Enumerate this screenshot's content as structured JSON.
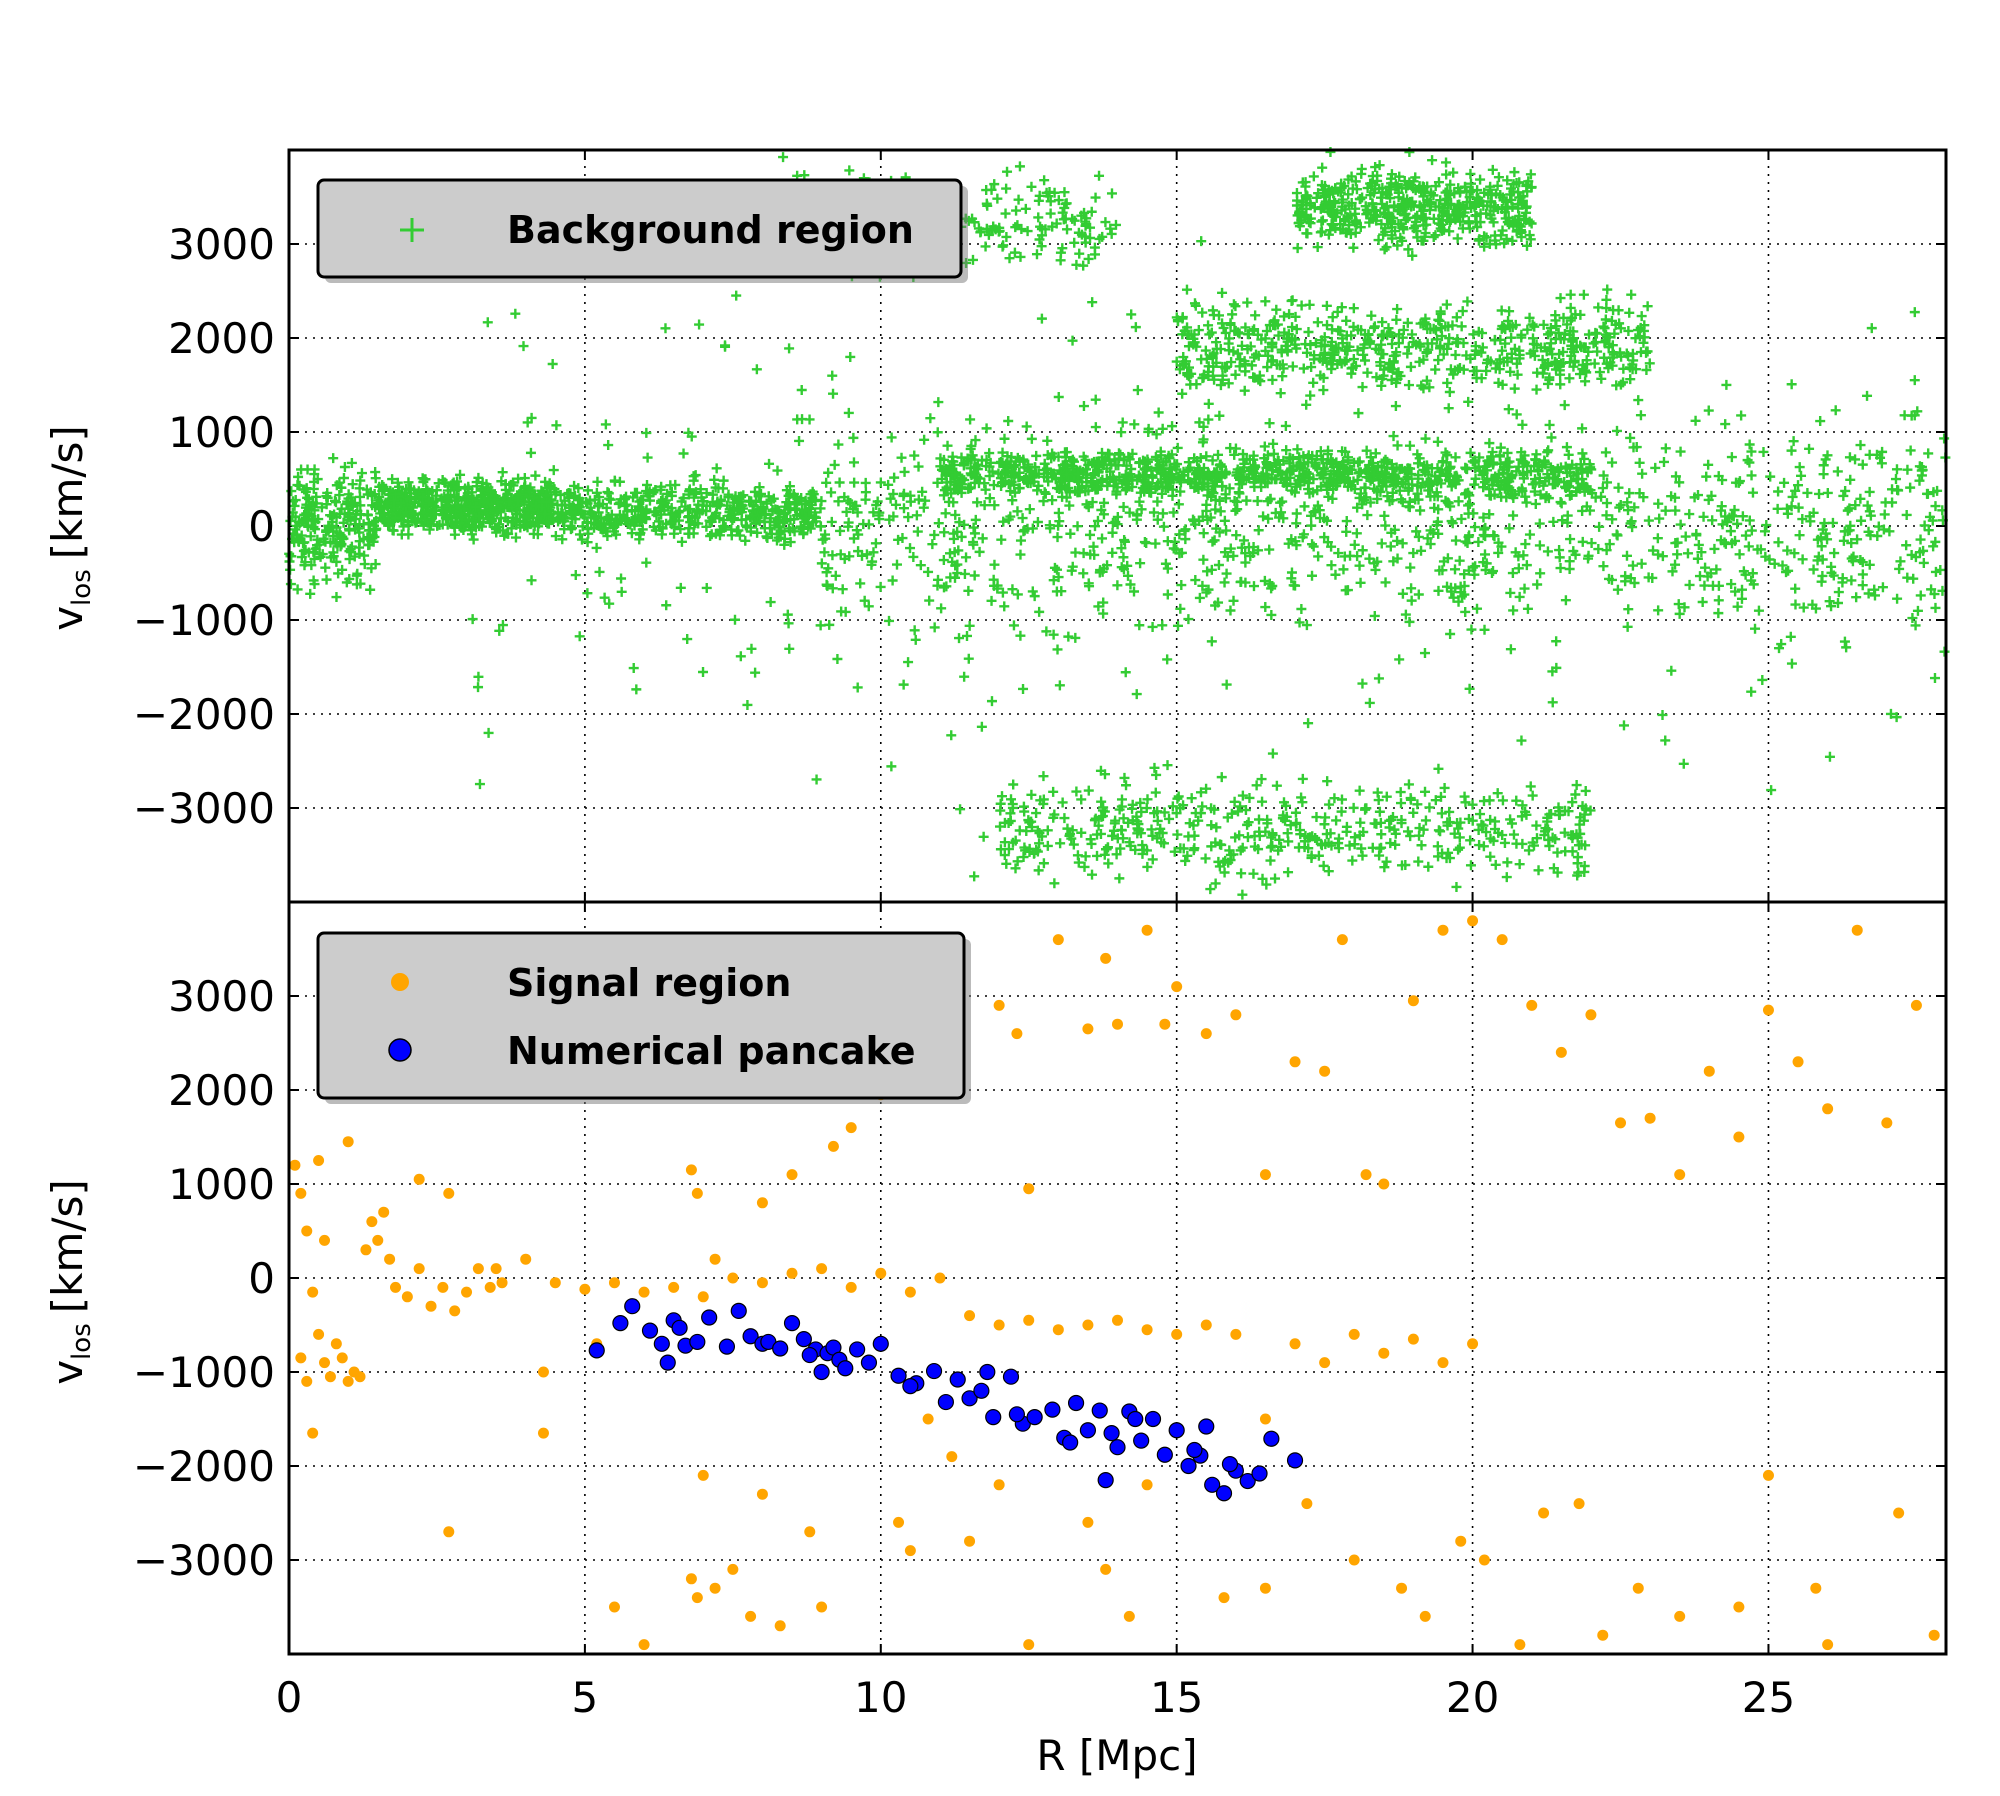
{
  "figure": {
    "xlabel": "R [Mpc]",
    "ylabel": "v",
    "ylabel_sub": "los",
    "ylabel_unit": "[km/s]"
  },
  "chart_data": [
    {
      "type": "scatter",
      "panel": "top",
      "xlim": [
        0,
        28
      ],
      "ylim": [
        -4000,
        4000
      ],
      "grid": true,
      "legend": "top-left",
      "xticks": [
        "0",
        "5",
        "10",
        "15",
        "20",
        "25"
      ],
      "yticks": [
        "3000",
        "2000",
        "1000",
        "0",
        "−1000",
        "−2000",
        "−3000"
      ],
      "xlabel": "",
      "ylabel": "v_los [km/s]",
      "colors": {
        "background": "#33cc33"
      },
      "series": [
        {
          "name": "Background region",
          "marker": "plus",
          "color": "#33cc33",
          "density_bands": [
            {
              "x": [
                0,
                1.5
              ],
              "y": [
                -900,
                900
              ],
              "weight": 0.25
            },
            {
              "x": [
                1.5,
                4.5
              ],
              "y": [
                -200,
                600
              ],
              "weight": 0.6
            },
            {
              "x": [
                4.5,
                9
              ],
              "y": [
                -300,
                600
              ],
              "weight": 0.5
            },
            {
              "x": [
                9,
                28
              ],
              "y": [
                -1500,
                1500
              ],
              "weight": 1.0
            },
            {
              "x": [
                11,
                22
              ],
              "y": [
                200,
                900
              ],
              "weight": 0.9
            },
            {
              "x": [
                15,
                23
              ],
              "y": [
                1200,
                2600
              ],
              "weight": 0.6
            },
            {
              "x": [
                17,
                21
              ],
              "y": [
                2800,
                4000
              ],
              "weight": 0.5
            },
            {
              "x": [
                8,
                14
              ],
              "y": [
                2500,
                4000
              ],
              "weight": 0.25
            },
            {
              "x": [
                12,
                22
              ],
              "y": [
                -4000,
                -2500
              ],
              "weight": 0.5
            },
            {
              "x": [
                3,
                28
              ],
              "y": [
                -4000,
                4000
              ],
              "weight": 0.35
            }
          ]
        }
      ]
    },
    {
      "type": "scatter",
      "panel": "bottom",
      "xlim": [
        0,
        28
      ],
      "ylim": [
        -4000,
        4000
      ],
      "grid": true,
      "legend": "top-left",
      "xticks": [
        "0",
        "5",
        "10",
        "15",
        "20",
        "25"
      ],
      "yticks": [
        "3000",
        "2000",
        "1000",
        "0",
        "−1000",
        "−2000",
        "−3000"
      ],
      "xlabel": "R [Mpc]",
      "ylabel": "v_los [km/s]",
      "colors": {
        "signal": "#ffa500",
        "pancake": "#0000ff"
      },
      "series": [
        {
          "name": "Signal region",
          "marker": "dot",
          "color": "#ffa500",
          "points": [
            [
              0.1,
              1200
            ],
            [
              0.2,
              900
            ],
            [
              0.3,
              500
            ],
            [
              0.4,
              -150
            ],
            [
              0.5,
              -600
            ],
            [
              0.6,
              -900
            ],
            [
              0.7,
              -1050
            ],
            [
              0.8,
              -700
            ],
            [
              0.9,
              -850
            ],
            [
              1.0,
              -1100
            ],
            [
              1.1,
              -1000
            ],
            [
              1.2,
              -1050
            ],
            [
              1.3,
              300
            ],
            [
              1.4,
              600
            ],
            [
              1.5,
              400
            ],
            [
              1.6,
              700
            ],
            [
              1.7,
              200
            ],
            [
              1.8,
              -100
            ],
            [
              2.0,
              -200
            ],
            [
              2.2,
              100
            ],
            [
              2.4,
              -300
            ],
            [
              2.6,
              -100
            ],
            [
              2.8,
              -350
            ],
            [
              3.0,
              -150
            ],
            [
              3.2,
              100
            ],
            [
              3.4,
              -100
            ],
            [
              3.6,
              -50
            ],
            [
              4.0,
              200
            ],
            [
              4.5,
              -50
            ],
            [
              5.0,
              -120
            ],
            [
              5.5,
              -50
            ],
            [
              6.0,
              -150
            ],
            [
              6.5,
              -100
            ],
            [
              7.0,
              -200
            ],
            [
              7.5,
              0
            ],
            [
              8.0,
              -50
            ],
            [
              8.5,
              50
            ],
            [
              9.0,
              100
            ],
            [
              9.5,
              -100
            ],
            [
              10.0,
              50
            ],
            [
              10.5,
              -150
            ],
            [
              11.0,
              0
            ],
            [
              11.5,
              -400
            ],
            [
              12.0,
              -500
            ],
            [
              12.5,
              -450
            ],
            [
              13.0,
              -550
            ],
            [
              13.5,
              -500
            ],
            [
              14.0,
              -450
            ],
            [
              14.5,
              -550
            ],
            [
              15.0,
              -600
            ],
            [
              15.5,
              -500
            ],
            [
              16.0,
              -600
            ],
            [
              16.5,
              -1500
            ],
            [
              17.0,
              -700
            ],
            [
              17.5,
              -900
            ],
            [
              18.0,
              -600
            ],
            [
              18.5,
              -800
            ],
            [
              19.0,
              -650
            ],
            [
              19.5,
              -900
            ],
            [
              20.0,
              -700
            ],
            [
              0.5,
              1250
            ],
            [
              0.3,
              -1100
            ],
            [
              0.2,
              -850
            ],
            [
              0.6,
              400
            ],
            [
              1.0,
              1450
            ],
            [
              2.2,
              1050
            ],
            [
              2.7,
              900
            ],
            [
              3.5,
              100
            ],
            [
              4.3,
              -1000
            ],
            [
              5.2,
              -700
            ],
            [
              6.8,
              1150
            ],
            [
              6.9,
              900
            ],
            [
              7.2,
              200
            ],
            [
              8.0,
              800
            ],
            [
              8.5,
              1100
            ],
            [
              9.2,
              1400
            ],
            [
              9.5,
              1600
            ],
            [
              10.0,
              1950
            ],
            [
              10.8,
              -1500
            ],
            [
              11.2,
              -1900
            ],
            [
              12.0,
              2900
            ],
            [
              12.3,
              2600
            ],
            [
              12.5,
              950
            ],
            [
              13.0,
              3600
            ],
            [
              13.5,
              2650
            ],
            [
              13.8,
              3400
            ],
            [
              14.0,
              2700
            ],
            [
              14.5,
              3700
            ],
            [
              14.8,
              2700
            ],
            [
              15.0,
              3100
            ],
            [
              15.5,
              2600
            ],
            [
              16.0,
              2800
            ],
            [
              16.5,
              1100
            ],
            [
              17.0,
              2300
            ],
            [
              17.5,
              2200
            ],
            [
              17.8,
              3600
            ],
            [
              18.2,
              1100
            ],
            [
              18.5,
              1000
            ],
            [
              19.0,
              2950
            ],
            [
              19.5,
              3700
            ],
            [
              20.0,
              3800
            ],
            [
              20.5,
              3600
            ],
            [
              21.0,
              2900
            ],
            [
              21.5,
              2400
            ],
            [
              22.0,
              2800
            ],
            [
              22.5,
              1650
            ],
            [
              23.0,
              1700
            ],
            [
              23.5,
              1100
            ],
            [
              24.0,
              2200
            ],
            [
              24.5,
              1500
            ],
            [
              25.0,
              2850
            ],
            [
              25.5,
              2300
            ],
            [
              26.0,
              1800
            ],
            [
              26.5,
              3700
            ],
            [
              27.0,
              1650
            ],
            [
              27.5,
              2900
            ],
            [
              18.0,
              -3000
            ],
            [
              18.8,
              -3300
            ],
            [
              19.2,
              -3600
            ],
            [
              19.8,
              -2800
            ],
            [
              20.2,
              -3000
            ],
            [
              20.8,
              -3900
            ],
            [
              21.2,
              -2500
            ],
            [
              21.8,
              -2400
            ],
            [
              22.2,
              -3800
            ],
            [
              22.8,
              -3300
            ],
            [
              23.5,
              -3600
            ],
            [
              24.5,
              -3500
            ],
            [
              25.0,
              -2100
            ],
            [
              25.8,
              -3300
            ],
            [
              26.0,
              -3900
            ],
            [
              27.2,
              -2500
            ],
            [
              27.8,
              -3800
            ],
            [
              6.8,
              -3200
            ],
            [
              6.9,
              -3400
            ],
            [
              7.2,
              -3300
            ],
            [
              7.5,
              -3100
            ],
            [
              7.8,
              -3600
            ],
            [
              8.3,
              -3700
            ],
            [
              8.8,
              -2700
            ],
            [
              10.5,
              -2900
            ],
            [
              12.0,
              -2200
            ],
            [
              13.5,
              -2600
            ],
            [
              13.8,
              -3100
            ],
            [
              14.2,
              -3600
            ],
            [
              12.5,
              -3900
            ],
            [
              14.5,
              -2200
            ],
            [
              15.8,
              -3400
            ],
            [
              16.5,
              -3300
            ],
            [
              17.2,
              -2400
            ],
            [
              2.7,
              -2700
            ],
            [
              4.3,
              -1650
            ],
            [
              7.0,
              -2100
            ],
            [
              8.0,
              -2300
            ],
            [
              5.5,
              -3500
            ],
            [
              6.0,
              -3900
            ],
            [
              9.0,
              -3500
            ],
            [
              10.3,
              -2600
            ],
            [
              11.5,
              -2800
            ],
            [
              0.4,
              -1650
            ]
          ]
        },
        {
          "name": "Numerical pancake",
          "marker": "dot",
          "color": "#0000ff",
          "points": [
            [
              5.2,
              -770
            ],
            [
              5.6,
              -480
            ],
            [
              5.8,
              -300
            ],
            [
              6.1,
              -560
            ],
            [
              6.3,
              -700
            ],
            [
              6.4,
              -900
            ],
            [
              6.5,
              -450
            ],
            [
              6.6,
              -530
            ],
            [
              6.7,
              -720
            ],
            [
              6.9,
              -680
            ],
            [
              7.1,
              -420
            ],
            [
              7.4,
              -730
            ],
            [
              7.6,
              -350
            ],
            [
              7.8,
              -620
            ],
            [
              8.0,
              -700
            ],
            [
              8.1,
              -680
            ],
            [
              8.3,
              -750
            ],
            [
              8.5,
              -480
            ],
            [
              8.7,
              -650
            ],
            [
              8.9,
              -760
            ],
            [
              9.1,
              -800
            ],
            [
              9.2,
              -740
            ],
            [
              9.3,
              -870
            ],
            [
              9.4,
              -960
            ],
            [
              9.6,
              -760
            ],
            [
              9.8,
              -900
            ],
            [
              10.0,
              -700
            ],
            [
              10.3,
              -1040
            ],
            [
              10.6,
              -1120
            ],
            [
              10.9,
              -990
            ],
            [
              11.1,
              -1320
            ],
            [
              11.3,
              -1080
            ],
            [
              11.5,
              -1280
            ],
            [
              11.7,
              -1200
            ],
            [
              11.9,
              -1480
            ],
            [
              12.2,
              -1050
            ],
            [
              12.4,
              -1550
            ],
            [
              12.6,
              -1480
            ],
            [
              12.9,
              -1400
            ],
            [
              13.1,
              -1700
            ],
            [
              13.3,
              -1330
            ],
            [
              13.5,
              -1620
            ],
            [
              13.7,
              -1410
            ],
            [
              13.9,
              -1650
            ],
            [
              14.0,
              -1800
            ],
            [
              14.2,
              -1420
            ],
            [
              14.4,
              -1730
            ],
            [
              14.6,
              -1500
            ],
            [
              14.8,
              -1880
            ],
            [
              15.0,
              -1620
            ],
            [
              15.2,
              -2000
            ],
            [
              15.4,
              -1890
            ],
            [
              15.5,
              -1580
            ],
            [
              15.6,
              -2200
            ],
            [
              15.8,
              -2290
            ],
            [
              16.0,
              -2050
            ],
            [
              16.2,
              -2160
            ],
            [
              16.4,
              -2080
            ],
            [
              16.6,
              -1710
            ],
            [
              17.0,
              -1940
            ],
            [
              9.0,
              -1000
            ],
            [
              10.5,
              -1150
            ],
            [
              11.8,
              -1000
            ],
            [
              12.3,
              -1450
            ],
            [
              13.8,
              -2150
            ],
            [
              14.3,
              -1500
            ],
            [
              15.3,
              -1830
            ],
            [
              15.9,
              -1980
            ],
            [
              13.2,
              -1750
            ],
            [
              8.8,
              -820
            ]
          ]
        }
      ]
    }
  ]
}
